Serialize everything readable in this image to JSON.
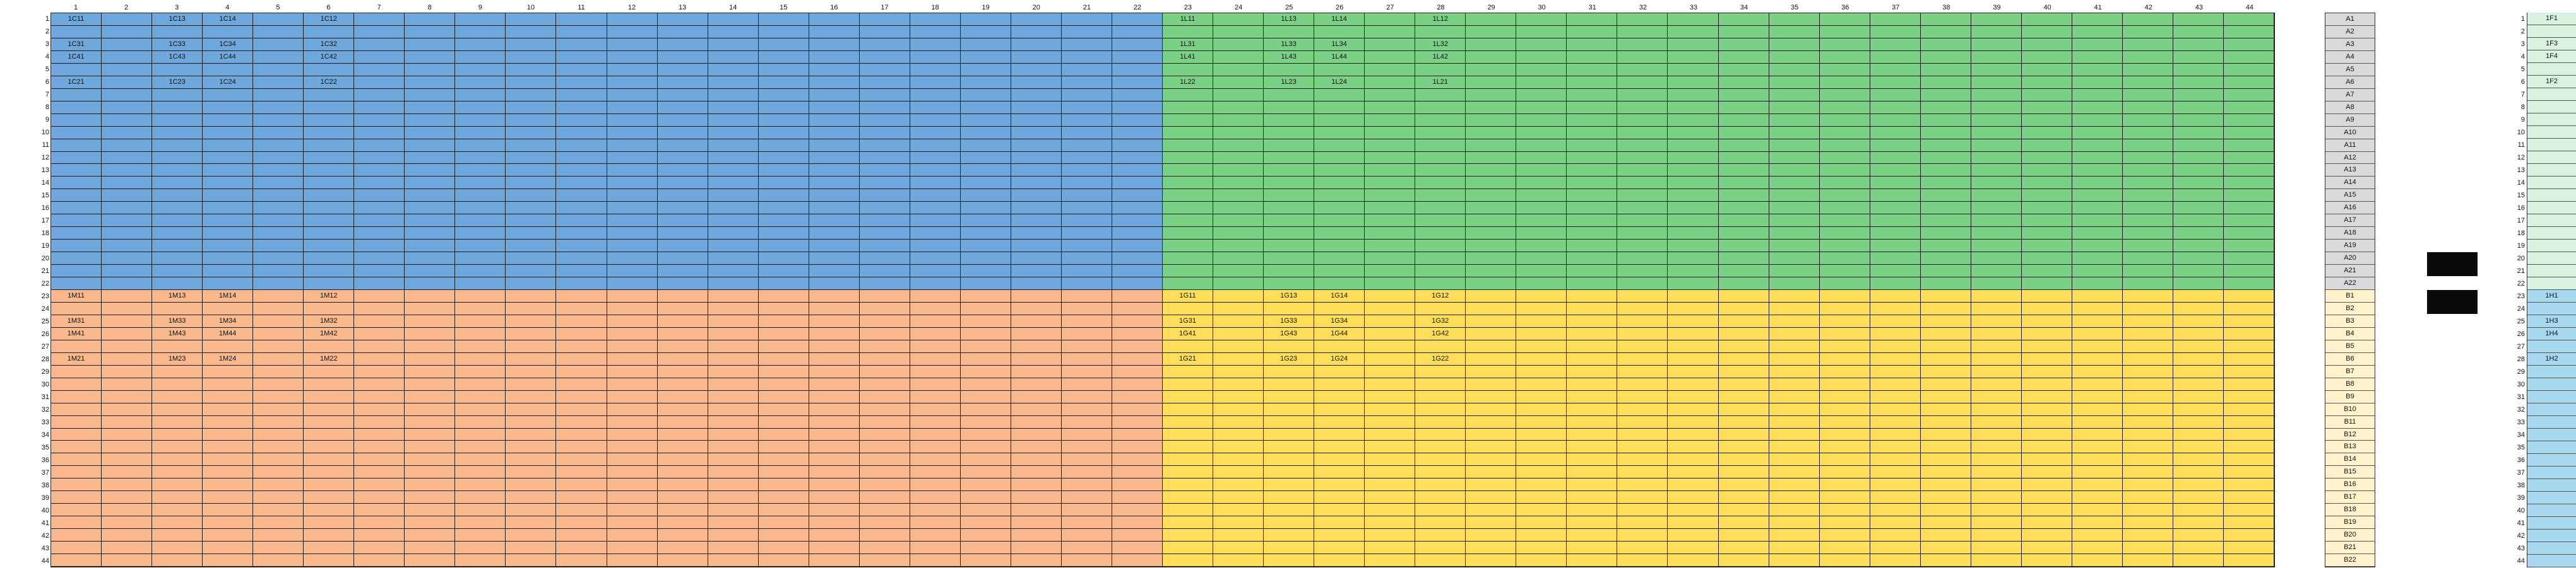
{
  "columns": [
    "1",
    "2",
    "3",
    "4",
    "5",
    "6",
    "7",
    "8",
    "9",
    "10",
    "11",
    "12",
    "13",
    "14",
    "15",
    "16",
    "17",
    "18",
    "19",
    "20",
    "21",
    "22",
    "23",
    "24",
    "25",
    "26",
    "27",
    "28",
    "29",
    "30",
    "31",
    "32",
    "33",
    "34",
    "35",
    "36",
    "37",
    "38",
    "39",
    "40",
    "41",
    "42",
    "43",
    "44"
  ],
  "rows": [
    "1",
    "2",
    "3",
    "4",
    "5",
    "6",
    "7",
    "8",
    "9",
    "10",
    "11",
    "12",
    "13",
    "14",
    "15",
    "16",
    "17",
    "18",
    "19",
    "20",
    "21",
    "22",
    "23",
    "24",
    "25",
    "26",
    "27",
    "28",
    "29",
    "30",
    "31",
    "32",
    "33",
    "34",
    "35",
    "36",
    "37",
    "38",
    "39",
    "40",
    "41",
    "42",
    "43",
    "44"
  ],
  "quadrant_colors": {
    "top_left": "#6fa8dc",
    "top_right": "#7ad185",
    "bottom_left": "#f9b98c",
    "bottom_right": "#ffde59"
  },
  "cell_labels": [
    {
      "r": 1,
      "c": 1,
      "t": "1C11"
    },
    {
      "r": 1,
      "c": 3,
      "t": "1C13"
    },
    {
      "r": 1,
      "c": 4,
      "t": "1C14"
    },
    {
      "r": 1,
      "c": 6,
      "t": "1C12"
    },
    {
      "r": 3,
      "c": 1,
      "t": "1C31"
    },
    {
      "r": 3,
      "c": 3,
      "t": "1C33"
    },
    {
      "r": 3,
      "c": 4,
      "t": "1C34"
    },
    {
      "r": 3,
      "c": 6,
      "t": "1C32"
    },
    {
      "r": 4,
      "c": 1,
      "t": "1C41"
    },
    {
      "r": 4,
      "c": 3,
      "t": "1C43"
    },
    {
      "r": 4,
      "c": 4,
      "t": "1C44"
    },
    {
      "r": 4,
      "c": 6,
      "t": "1C42"
    },
    {
      "r": 6,
      "c": 1,
      "t": "1C21"
    },
    {
      "r": 6,
      "c": 3,
      "t": "1C23"
    },
    {
      "r": 6,
      "c": 4,
      "t": "1C24"
    },
    {
      "r": 6,
      "c": 6,
      "t": "1C22"
    },
    {
      "r": 1,
      "c": 23,
      "t": "1L11"
    },
    {
      "r": 1,
      "c": 25,
      "t": "1L13"
    },
    {
      "r": 1,
      "c": 26,
      "t": "1L14"
    },
    {
      "r": 1,
      "c": 28,
      "t": "1L12"
    },
    {
      "r": 3,
      "c": 23,
      "t": "1L31"
    },
    {
      "r": 3,
      "c": 25,
      "t": "1L33"
    },
    {
      "r": 3,
      "c": 26,
      "t": "1L34"
    },
    {
      "r": 3,
      "c": 28,
      "t": "1L32"
    },
    {
      "r": 4,
      "c": 23,
      "t": "1L41"
    },
    {
      "r": 4,
      "c": 25,
      "t": "1L43"
    },
    {
      "r": 4,
      "c": 26,
      "t": "1L44"
    },
    {
      "r": 4,
      "c": 28,
      "t": "1L42"
    },
    {
      "r": 6,
      "c": 23,
      "t": "1L22"
    },
    {
      "r": 6,
      "c": 25,
      "t": "1L23"
    },
    {
      "r": 6,
      "c": 26,
      "t": "1L24"
    },
    {
      "r": 6,
      "c": 28,
      "t": "1L21"
    },
    {
      "r": 23,
      "c": 1,
      "t": "1M11"
    },
    {
      "r": 23,
      "c": 3,
      "t": "1M13"
    },
    {
      "r": 23,
      "c": 4,
      "t": "1M14"
    },
    {
      "r": 23,
      "c": 6,
      "t": "1M12"
    },
    {
      "r": 25,
      "c": 1,
      "t": "1M31"
    },
    {
      "r": 25,
      "c": 3,
      "t": "1M33"
    },
    {
      "r": 25,
      "c": 4,
      "t": "1M34"
    },
    {
      "r": 25,
      "c": 6,
      "t": "1M32"
    },
    {
      "r": 26,
      "c": 1,
      "t": "1M41"
    },
    {
      "r": 26,
      "c": 3,
      "t": "1M43"
    },
    {
      "r": 26,
      "c": 4,
      "t": "1M44"
    },
    {
      "r": 26,
      "c": 6,
      "t": "1M42"
    },
    {
      "r": 28,
      "c": 1,
      "t": "1M21"
    },
    {
      "r": 28,
      "c": 3,
      "t": "1M23"
    },
    {
      "r": 28,
      "c": 4,
      "t": "1M24"
    },
    {
      "r": 28,
      "c": 6,
      "t": "1M22"
    },
    {
      "r": 23,
      "c": 23,
      "t": "1G11"
    },
    {
      "r": 23,
      "c": 25,
      "t": "1G13"
    },
    {
      "r": 23,
      "c": 26,
      "t": "1G14"
    },
    {
      "r": 23,
      "c": 28,
      "t": "1G12"
    },
    {
      "r": 25,
      "c": 23,
      "t": "1G31"
    },
    {
      "r": 25,
      "c": 25,
      "t": "1G33"
    },
    {
      "r": 25,
      "c": 26,
      "t": "1G34"
    },
    {
      "r": 25,
      "c": 28,
      "t": "1G32"
    },
    {
      "r": 26,
      "c": 23,
      "t": "1G41"
    },
    {
      "r": 26,
      "c": 25,
      "t": "1G43"
    },
    {
      "r": 26,
      "c": 26,
      "t": "1G44"
    },
    {
      "r": 26,
      "c": 28,
      "t": "1G42"
    },
    {
      "r": 28,
      "c": 23,
      "t": "1G21"
    },
    {
      "r": 28,
      "c": 25,
      "t": "1G23"
    },
    {
      "r": 28,
      "c": 26,
      "t": "1G24"
    },
    {
      "r": 28,
      "c": 28,
      "t": "1G22"
    }
  ],
  "ab_list": [
    "A1",
    "A2",
    "A3",
    "A4",
    "A5",
    "A6",
    "A7",
    "A8",
    "A9",
    "A10",
    "A11",
    "A12",
    "A13",
    "A14",
    "A15",
    "A16",
    "A17",
    "A18",
    "A19",
    "A20",
    "A21",
    "A22",
    "B1",
    "B2",
    "B3",
    "B4",
    "B5",
    "B6",
    "B7",
    "B8",
    "B9",
    "B10",
    "B11",
    "B12",
    "B13",
    "B14",
    "B15",
    "B16",
    "B17",
    "B18",
    "B19",
    "B20",
    "B21",
    "B22"
  ],
  "ab_colors": {
    "a": "#d9d9d9",
    "b": "#fff2cc"
  },
  "black_boxes_rows": [
    20,
    23
  ],
  "side_labels": {
    "1": "1F1",
    "3": "1F3",
    "4": "1F4",
    "6": "1F2",
    "23": "1H1",
    "25": "1H3",
    "26": "1H4",
    "28": "1H2"
  },
  "side_colors": {
    "top": "#d9f2df",
    "bottom": "#a8d8ef"
  }
}
